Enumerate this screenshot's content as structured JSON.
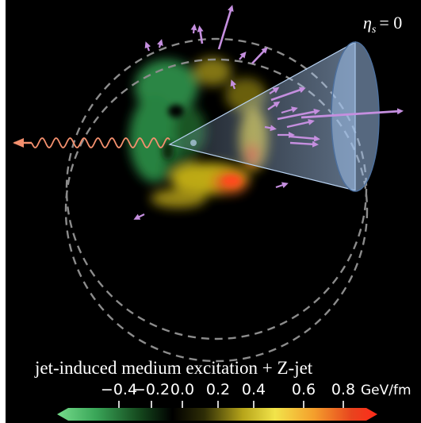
{
  "panel": {
    "corner_label": "ηs = 0",
    "corner_label_sub": "s",
    "corner_label_symbol": "η",
    "corner_label_value": "= 0"
  },
  "caption": {
    "text": "jet-induced medium excitation + Z-jet"
  },
  "colorbar": {
    "ticks": [
      "−0.4",
      "−0.2",
      "0.0",
      "0.2",
      "0.4",
      "0.6",
      "0.8"
    ],
    "unit": "GeV/fm",
    "colors": [
      "#6fd68a",
      "#32a04e",
      "#114018",
      "#000000",
      "#3b3a08",
      "#c9b418",
      "#f0e040",
      "#f49a20",
      "#e83a1c",
      "#ff2a1a"
    ]
  },
  "colors": {
    "background": "#000000",
    "dashed_circle": "#8c8c8c",
    "cone": "#a9c8ef",
    "photon": "#f4906e",
    "arrows": "#c58fdf"
  }
}
